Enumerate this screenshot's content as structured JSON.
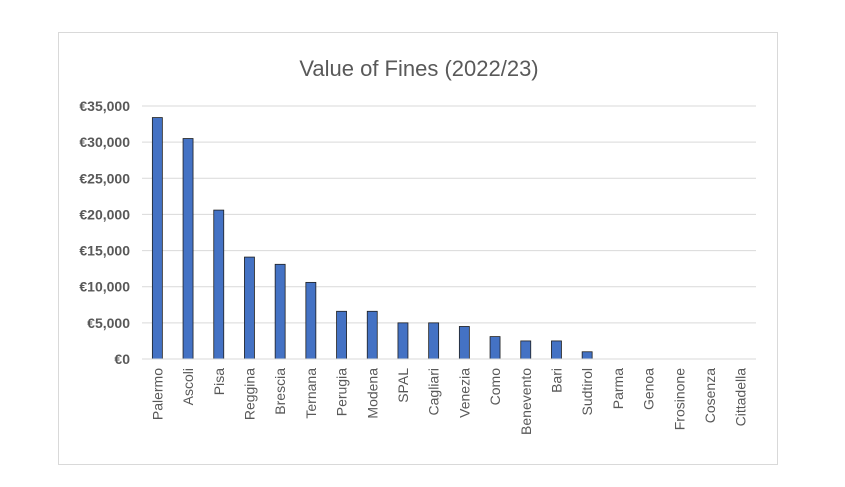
{
  "chart_data": {
    "type": "bar",
    "title": "Value of Fines (2022/23)",
    "xlabel": "",
    "ylabel": "",
    "ylim": [
      0,
      35000
    ],
    "yticks": [
      "€0",
      "€5,000",
      "€10,000",
      "€15,000",
      "€20,000",
      "€25,000",
      "€30,000",
      "€35,000"
    ],
    "grid": true,
    "legend": "none",
    "bar_color": "#4472c4",
    "bar_edge_color": "#1f1f1f",
    "categories": [
      "Palermo",
      "Ascoli",
      "Pisa",
      "Reggina",
      "Brescia",
      "Ternana",
      "Perugia",
      "Modena",
      "SPAL",
      "Cagliari",
      "Venezia",
      "Como",
      "Benevento",
      "Bari",
      "Sudtirol",
      "Parma",
      "Genoa",
      "Frosinone",
      "Cosenza",
      "Cittadella"
    ],
    "values": [
      33400,
      30500,
      20600,
      14100,
      13100,
      10600,
      6600,
      6600,
      5000,
      5000,
      4500,
      3100,
      2500,
      2500,
      1000,
      0,
      0,
      0,
      0,
      0
    ]
  }
}
